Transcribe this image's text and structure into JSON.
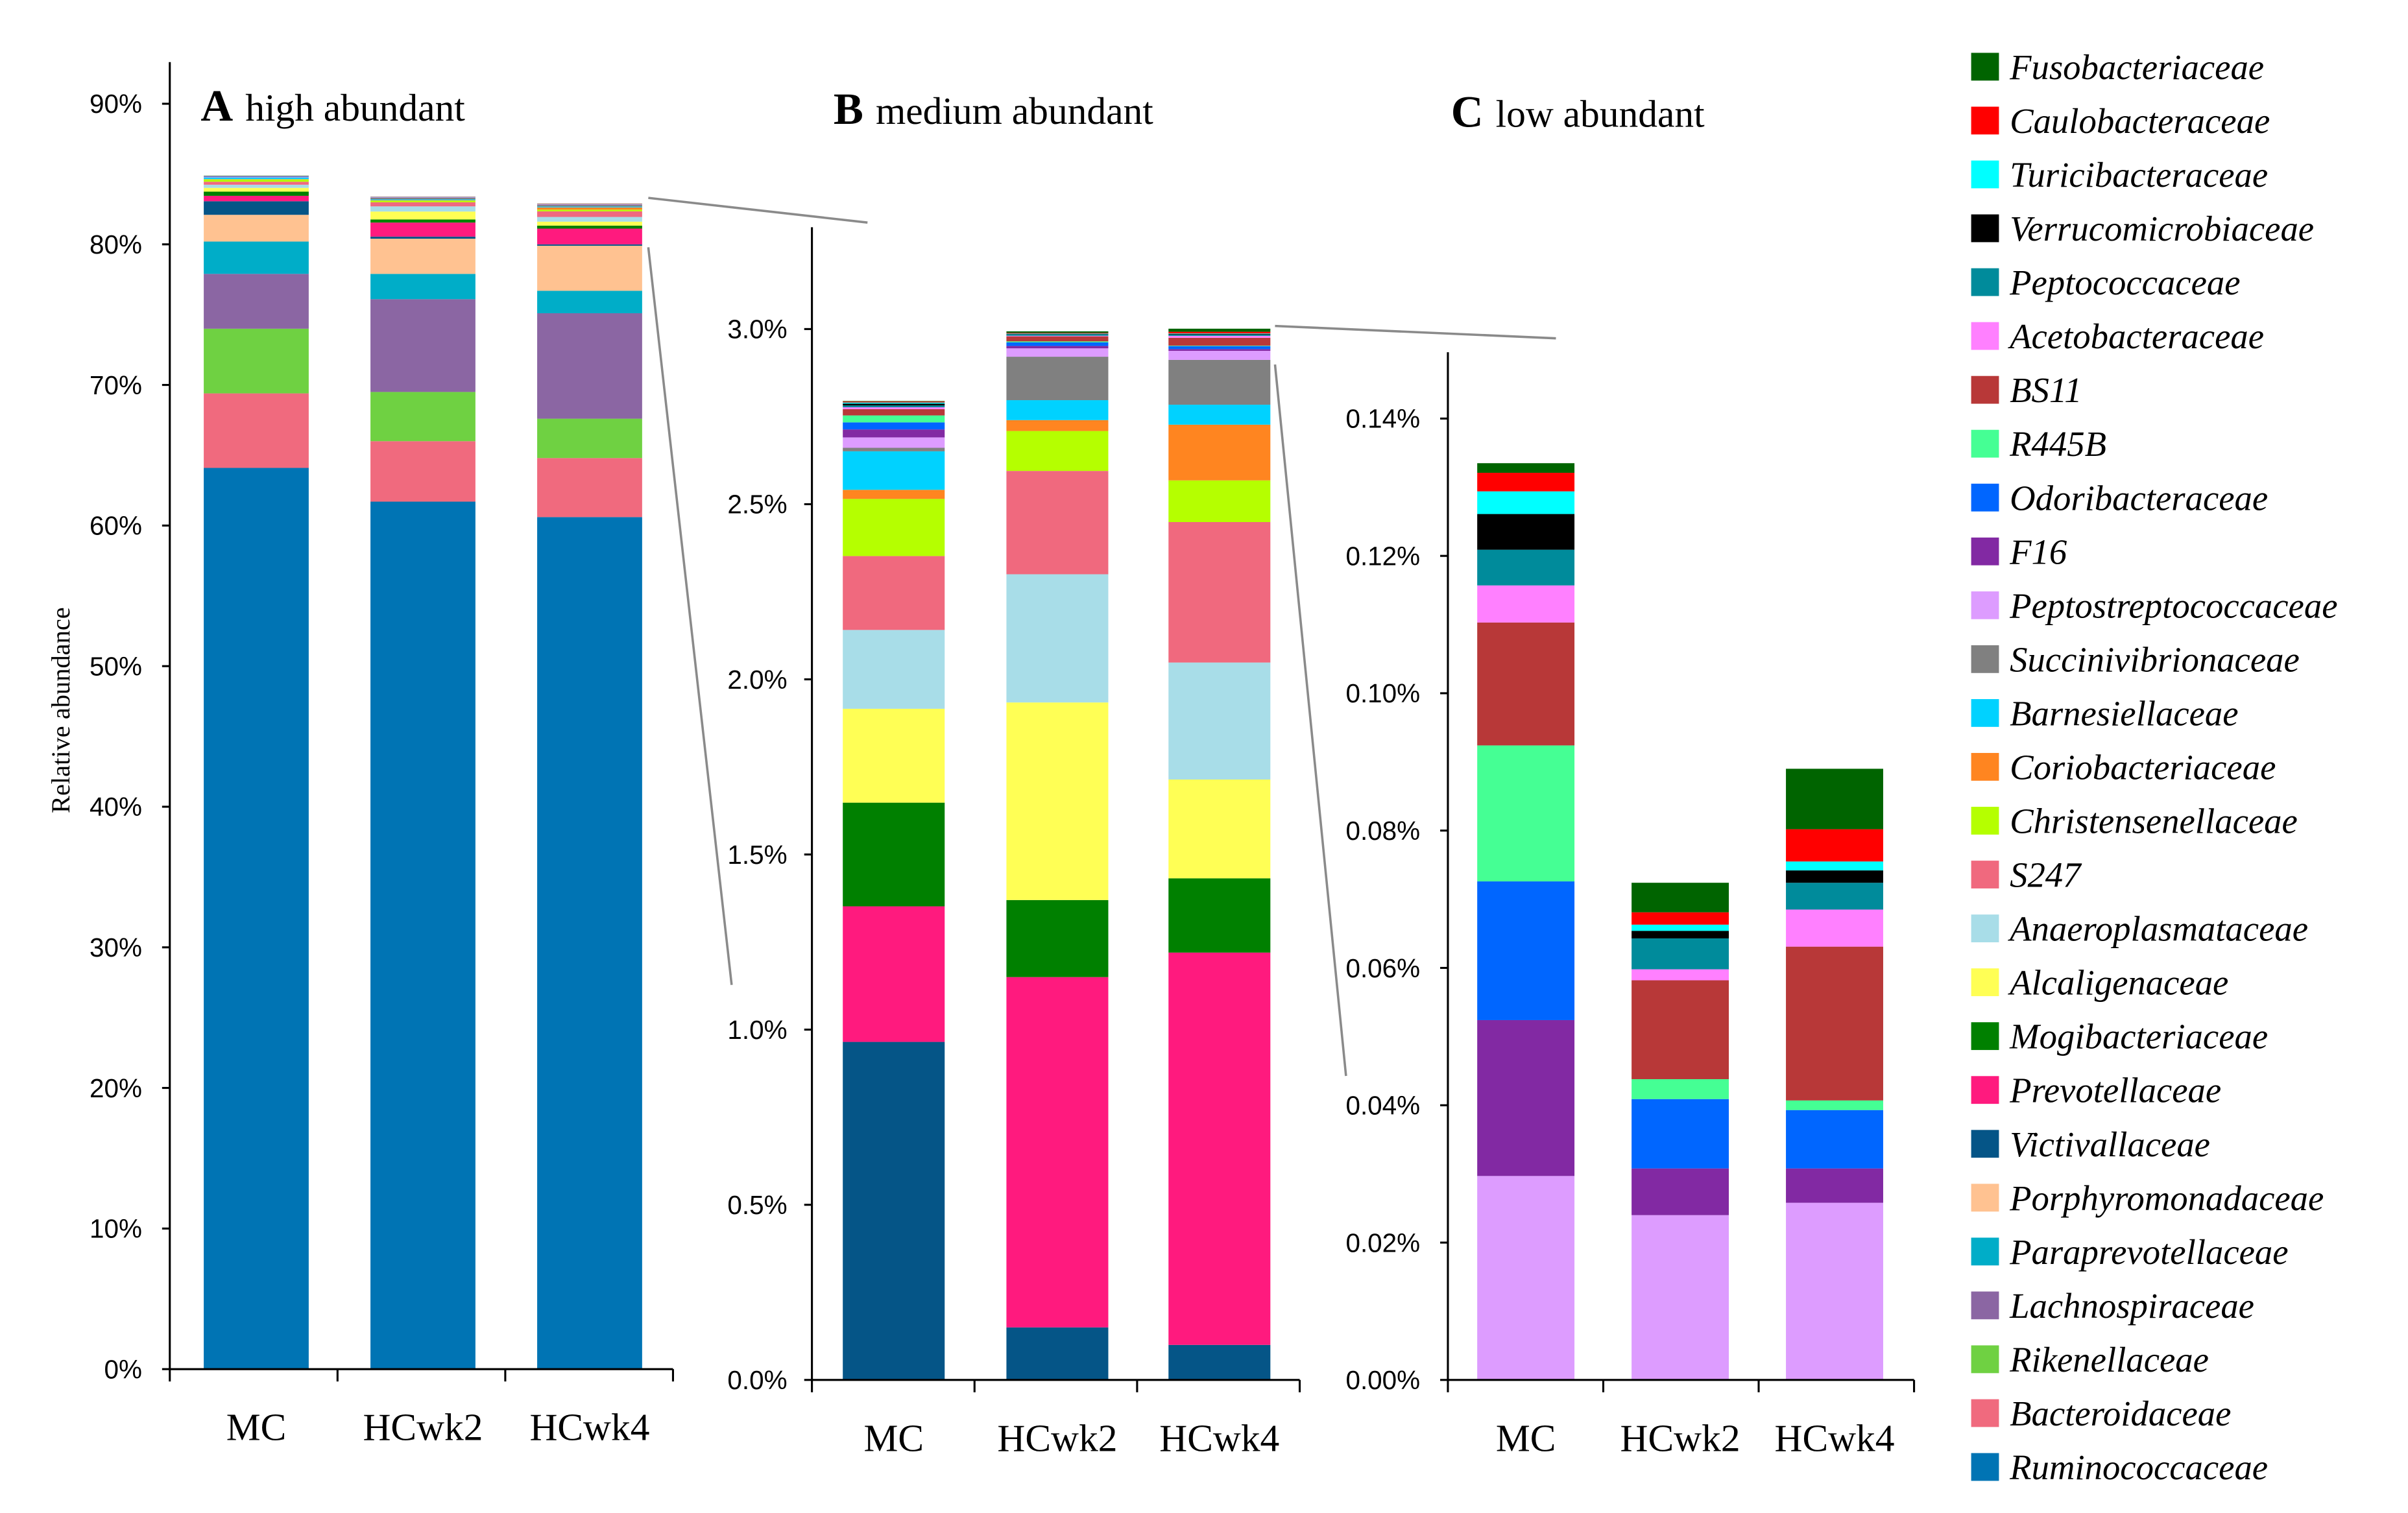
{
  "chart_data": {
    "type": "bar",
    "stacked": true,
    "ylabel": "Relative abundance",
    "categories": [
      "MC",
      "HCwk2",
      "HCwk4"
    ],
    "series": [
      {
        "name": "Ruminococcaceae",
        "color": "#0074B4",
        "values": [
          64.1,
          61.7,
          60.6
        ]
      },
      {
        "name": "Bacteroidaceae",
        "color": "#F06A7E",
        "values": [
          5.3,
          4.3,
          4.2
        ]
      },
      {
        "name": "Rikenellaceae",
        "color": "#6FD142",
        "values": [
          4.6,
          3.5,
          2.8
        ]
      },
      {
        "name": "Lachnospiraceae",
        "color": "#8B66A3",
        "values": [
          3.9,
          6.6,
          7.5
        ]
      },
      {
        "name": "Paraprevotellaceae",
        "color": "#00ADC8",
        "values": [
          2.3,
          1.8,
          1.6
        ]
      },
      {
        "name": "Porphyromonadaceae",
        "color": "#FFC291",
        "values": [
          1.9,
          2.5,
          3.2
        ]
      },
      {
        "name": "Victivallaceae",
        "color": "#055587",
        "values": [
          0.965,
          0.15,
          0.1
        ]
      },
      {
        "name": "Prevotellaceae",
        "color": "#FF1A7E",
        "values": [
          0.387,
          1.0,
          1.12
        ]
      },
      {
        "name": "Mogibacteriaceae",
        "color": "#008000",
        "values": [
          0.296,
          0.22,
          0.212
        ]
      },
      {
        "name": "Alcaligenaceae",
        "color": "#FFFF55",
        "values": [
          0.268,
          0.564,
          0.282
        ]
      },
      {
        "name": "Anaeroplasmataceae",
        "color": "#A8DDE8",
        "values": [
          0.225,
          0.366,
          0.334
        ]
      },
      {
        "name": "S247",
        "color": "#F0697E",
        "values": [
          0.211,
          0.295,
          0.401
        ]
      },
      {
        "name": "Christensenellaceae",
        "color": "#B5FF00",
        "values": [
          0.163,
          0.114,
          0.119
        ]
      },
      {
        "name": "Coriobacteriaceae",
        "color": "#FF8520",
        "values": [
          0.026,
          0.031,
          0.159
        ]
      },
      {
        "name": "Barnesiellaceae",
        "color": "#00D2FF",
        "values": [
          0.11,
          0.057,
          0.057
        ]
      },
      {
        "name": "Succinivibrionaceae",
        "color": "#808080",
        "values": [
          0.01,
          0.124,
          0.128
        ]
      },
      {
        "name": "Peptostreptococcaceae",
        "color": "#DD9CFF",
        "values": [
          0.0297,
          0.024,
          0.0258
        ]
      },
      {
        "name": "F16",
        "color": "#8229A3",
        "values": [
          0.0227,
          0.0068,
          0.005
        ]
      },
      {
        "name": "Odoribacteraceae",
        "color": "#0066FF",
        "values": [
          0.0202,
          0.0101,
          0.0085
        ]
      },
      {
        "name": "R445B",
        "color": "#45FF94",
        "values": [
          0.0198,
          0.0029,
          0.0014
        ]
      },
      {
        "name": "BS11",
        "color": "#B83838",
        "values": [
          0.0179,
          0.0144,
          0.0224
        ]
      },
      {
        "name": "Acetobacteraceae",
        "color": "#FF80FF",
        "values": [
          0.0054,
          0.0016,
          0.0054
        ]
      },
      {
        "name": "Peptococcaceae",
        "color": "#008B9B",
        "values": [
          0.0052,
          0.0045,
          0.0039
        ]
      },
      {
        "name": "Verrucomicrobiaceae",
        "color": "#000000",
        "values": [
          0.0052,
          0.0011,
          0.0018
        ]
      },
      {
        "name": "Turicibacteraceae",
        "color": "#00FFFF",
        "values": [
          0.0033,
          0.0009,
          0.0013
        ]
      },
      {
        "name": "Caulobacteraceae",
        "color": "#FF0000",
        "values": [
          0.0027,
          0.0018,
          0.0047
        ]
      },
      {
        "name": "Fusobacteriaceae",
        "color": "#006400",
        "values": [
          0.0014,
          0.0043,
          0.0088
        ]
      }
    ],
    "panels": [
      {
        "letter": "A",
        "title": "high abundant",
        "first_series": "Ruminococcaceae",
        "ylim": [
          0,
          90
        ],
        "ticks": [
          0,
          10,
          20,
          30,
          40,
          50,
          60,
          70,
          80,
          90
        ],
        "tick_labels": [
          "0%",
          "10%",
          "20%",
          "30%",
          "40%",
          "50%",
          "60%",
          "70%",
          "80%",
          "90%"
        ]
      },
      {
        "letter": "B",
        "title": "medium abundant",
        "first_series": "Victivallaceae",
        "ylim": [
          0,
          3.3
        ],
        "ticks": [
          0,
          0.5,
          1.0,
          1.5,
          2.0,
          2.5,
          3.0
        ],
        "tick_labels": [
          "0.0%",
          "0.5%",
          "1.0%",
          "1.5%",
          "2.0%",
          "2.5%",
          "3.0%"
        ]
      },
      {
        "letter": "C",
        "title": "low abundant",
        "first_series": "Peptostreptococcaceae",
        "ylim": [
          0,
          0.15
        ],
        "ticks": [
          0,
          0.02,
          0.04,
          0.06,
          0.08,
          0.1,
          0.12,
          0.14
        ],
        "tick_labels": [
          "0.00%",
          "0.02%",
          "0.04%",
          "0.06%",
          "0.08%",
          "0.10%",
          "0.12%",
          "0.14%"
        ]
      }
    ],
    "legend_position": "right"
  }
}
